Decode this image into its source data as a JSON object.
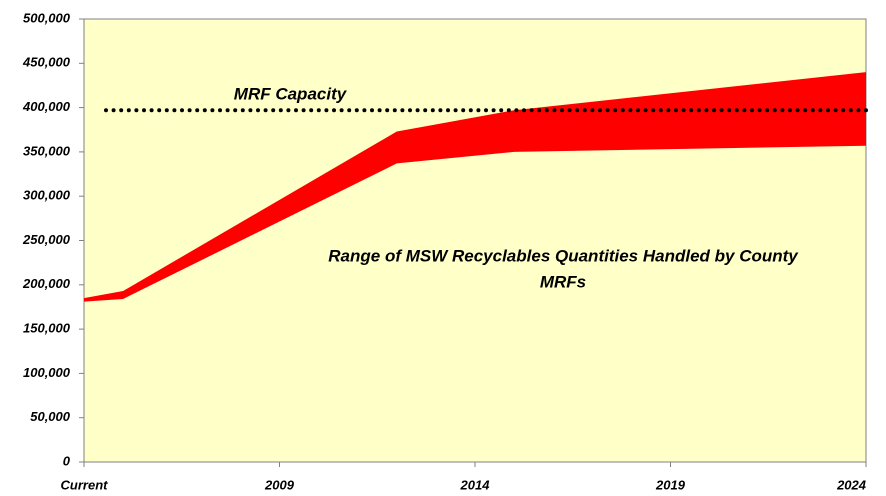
{
  "chart_data": {
    "type": "area",
    "x": [
      2004,
      2005,
      2012,
      2015,
      2024
    ],
    "series": [
      {
        "color": "#ff0000",
        "values": [
          181000,
          184000,
          337000,
          350000,
          357000
        ]
      },
      {
        "color": "#ff0000",
        "values": [
          185000,
          193000,
          373000,
          397000,
          440000
        ]
      }
    ],
    "capacity": {
      "label": "MRF Capacity",
      "value": 397000,
      "color": "#000000"
    },
    "annotation": [
      "Range of MSW Recyclables Quantities Handled by County",
      "MRFs"
    ],
    "xlim": [
      2004,
      2024
    ],
    "xticks": [
      {
        "value": 2004,
        "label": "Current"
      },
      2009,
      2014,
      2019,
      2024
    ],
    "ylim": [
      0,
      500000
    ],
    "yticks": [
      {
        "value": 0,
        "label": "0"
      },
      {
        "value": 50000,
        "label": "50,000"
      },
      {
        "value": 100000,
        "label": "100,000"
      },
      {
        "value": 150000,
        "label": "150,000"
      },
      {
        "value": 200000,
        "label": "200,000"
      },
      {
        "value": 250000,
        "label": "250,000"
      },
      {
        "value": 300000,
        "label": "300,000"
      },
      {
        "value": 350000,
        "label": "350,000"
      },
      {
        "value": 400000,
        "label": "400,000"
      },
      {
        "value": 450000,
        "label": "450,000"
      },
      {
        "value": 500000,
        "label": "500,000"
      }
    ],
    "background": "#ffffc8"
  }
}
